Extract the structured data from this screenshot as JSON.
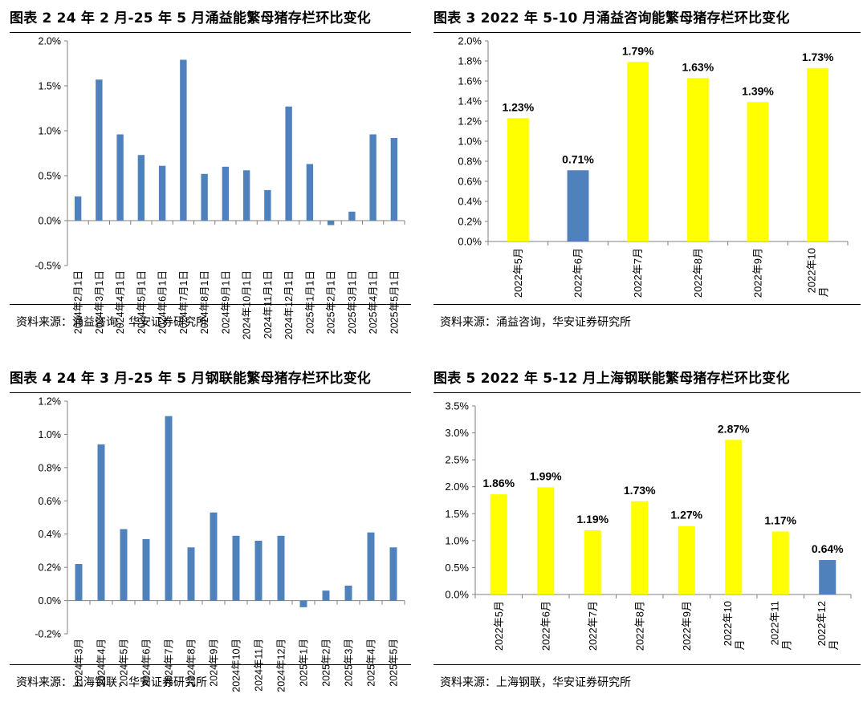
{
  "panels": [
    {
      "title": "图表 2 24 年 2 月-25 年 5 月涌益能繁母猪存栏环比变化",
      "source": "资料来源：涌益咨询，华安证券研究所"
    },
    {
      "title": "图表 3 2022 年 5-10 月涌益咨询能繁母猪存栏环比变化",
      "source": "资料来源：涌益咨询，华安证券研究所"
    },
    {
      "title": "图表 4 24 年 3 月-25 年 5 月钢联能繁母猪存栏环比变化",
      "source": "资料来源：上海钢联，华安证券研究所"
    },
    {
      "title": "图表 5 2022 年 5-12 月上海钢联能繁母猪存栏环比变化",
      "source": "资料来源：上海钢联，华安证券研究所"
    }
  ],
  "chart_data": [
    {
      "type": "bar",
      "title": "图表 2 24 年 2 月-25 年 5 月涌益能繁母猪存栏环比变化",
      "categories": [
        "2024年2月1日",
        "2024年3月1日",
        "2024年4月1日",
        "2024年5月1日",
        "2024年6月1日",
        "2024年7月1日",
        "2024年8月1日",
        "2024年9月1日",
        "2024年10月1日",
        "2024年11月1日",
        "2024年12月1日",
        "2025年1月1日",
        "2025年2月1日",
        "2025年3月1日",
        "2025年4月1日",
        "2025年5月1日"
      ],
      "values": [
        0.27,
        1.57,
        0.96,
        0.73,
        0.61,
        1.79,
        0.52,
        0.6,
        0.56,
        0.34,
        1.27,
        0.63,
        -0.05,
        0.1,
        0.96,
        0.92
      ],
      "ylim": [
        -0.5,
        2.0
      ],
      "yticks": [
        -0.5,
        0.0,
        0.5,
        1.0,
        1.5,
        2.0
      ],
      "ytick_labels": [
        "-0.5%",
        "0.0%",
        "0.5%",
        "1.0%",
        "1.5%",
        "2.0%"
      ],
      "unit": "%",
      "bar_color": "#4f81bd",
      "grid": false,
      "legend": "none"
    },
    {
      "type": "bar",
      "title": "图表 3 2022 年 5-10 月涌益咨询能繁母猪存栏环比变化",
      "categories": [
        "2022年5月",
        "2022年6月",
        "2022年7月",
        "2022年8月",
        "2022年9月",
        "2022年10月"
      ],
      "values": [
        1.23,
        0.71,
        1.79,
        1.63,
        1.39,
        1.73
      ],
      "data_labels": [
        "1.23%",
        "0.71%",
        "1.79%",
        "1.63%",
        "1.39%",
        "1.73%"
      ],
      "bar_colors": [
        "#ffff00",
        "#4f81bd",
        "#ffff00",
        "#ffff00",
        "#ffff00",
        "#ffff00"
      ],
      "ylim": [
        0.0,
        2.0
      ],
      "yticks": [
        0.0,
        0.2,
        0.4,
        0.6,
        0.8,
        1.0,
        1.2,
        1.4,
        1.6,
        1.8,
        2.0
      ],
      "ytick_labels": [
        "0.0%",
        "0.2%",
        "0.4%",
        "0.6%",
        "0.8%",
        "1.0%",
        "1.2%",
        "1.4%",
        "1.6%",
        "1.8%",
        "2.0%"
      ],
      "unit": "%",
      "grid": false,
      "legend": "none"
    },
    {
      "type": "bar",
      "title": "图表 4 24 年 3 月-25 年 5 月钢联能繁母猪存栏环比变化",
      "categories": [
        "2024年3月",
        "2024年4月",
        "2024年5月",
        "2024年6月",
        "2024年7月",
        "2024年8月",
        "2024年9月",
        "2024年10月",
        "2024年11月",
        "2024年12月",
        "2025年1月",
        "2025年2月",
        "2025年3月",
        "2025年4月",
        "2025年5月"
      ],
      "values": [
        0.22,
        0.94,
        0.43,
        0.37,
        1.11,
        0.32,
        0.53,
        0.39,
        0.36,
        0.39,
        -0.04,
        0.06,
        0.09,
        0.41,
        0.32
      ],
      "ylim": [
        -0.2,
        1.2
      ],
      "yticks": [
        -0.2,
        0.0,
        0.2,
        0.4,
        0.6,
        0.8,
        1.0,
        1.2
      ],
      "ytick_labels": [
        "-0.2%",
        "0.0%",
        "0.2%",
        "0.4%",
        "0.6%",
        "0.8%",
        "1.0%",
        "1.2%"
      ],
      "unit": "%",
      "bar_color": "#4f81bd",
      "grid": false,
      "legend": "none"
    },
    {
      "type": "bar",
      "title": "图表 5 2022 年 5-12 月上海钢联能繁母猪存栏环比变化",
      "categories": [
        "2022年5月",
        "2022年6月",
        "2022年7月",
        "2022年8月",
        "2022年9月",
        "2022年10月",
        "2022年11月",
        "2022年12月"
      ],
      "values": [
        1.86,
        1.99,
        1.19,
        1.73,
        1.27,
        2.87,
        1.17,
        0.64
      ],
      "data_labels": [
        "1.86%",
        "1.99%",
        "1.19%",
        "1.73%",
        "1.27%",
        "2.87%",
        "1.17%",
        "0.64%"
      ],
      "bar_colors": [
        "#ffff00",
        "#ffff00",
        "#ffff00",
        "#ffff00",
        "#ffff00",
        "#ffff00",
        "#ffff00",
        "#4f81bd"
      ],
      "ylim": [
        0.0,
        3.5
      ],
      "yticks": [
        0.0,
        0.5,
        1.0,
        1.5,
        2.0,
        2.5,
        3.0,
        3.5
      ],
      "ytick_labels": [
        "0.0%",
        "0.5%",
        "1.0%",
        "1.5%",
        "2.0%",
        "2.5%",
        "3.0%",
        "3.5%"
      ],
      "unit": "%",
      "grid": false,
      "legend": "none"
    }
  ]
}
